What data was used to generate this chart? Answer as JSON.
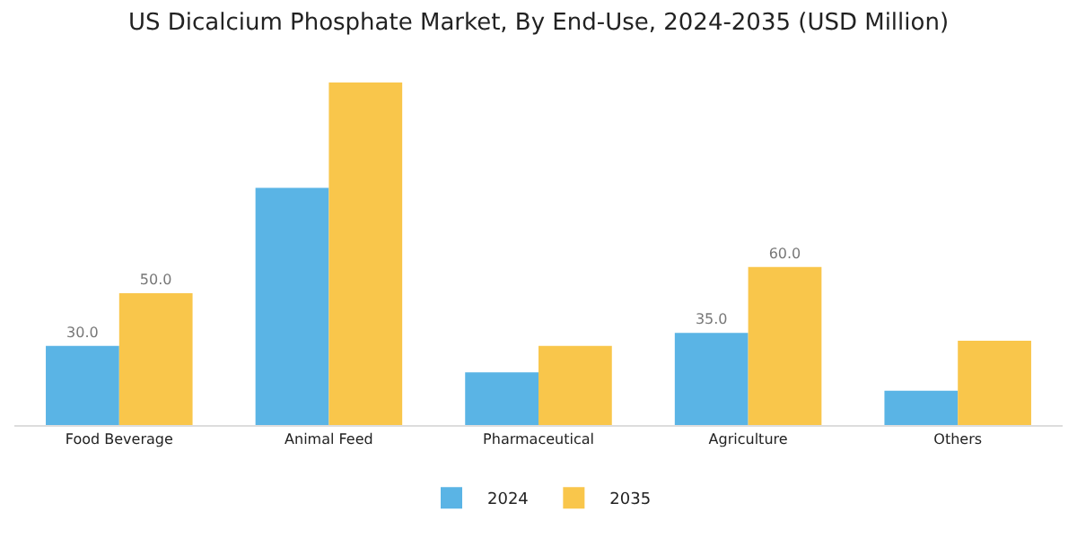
{
  "chart_data": {
    "type": "bar",
    "title": "US Dicalcium Phosphate Market, By End-Use, 2024-2035 (USD Million)",
    "categories": [
      "Food Beverage",
      "Animal Feed",
      "Pharmaceutical",
      "Agriculture",
      "Others"
    ],
    "series": [
      {
        "name": "2024",
        "color": "#5ab4e5",
        "values": [
          30,
          90,
          20,
          35,
          13
        ],
        "value_labels": [
          "30.0",
          null,
          null,
          "35.0",
          null
        ]
      },
      {
        "name": "2035",
        "color": "#f9c64b",
        "values": [
          50,
          130,
          30,
          60,
          32
        ],
        "value_labels": [
          "50.0",
          null,
          null,
          "60.0",
          null
        ]
      }
    ],
    "legend": "bottom",
    "grid": false
  }
}
